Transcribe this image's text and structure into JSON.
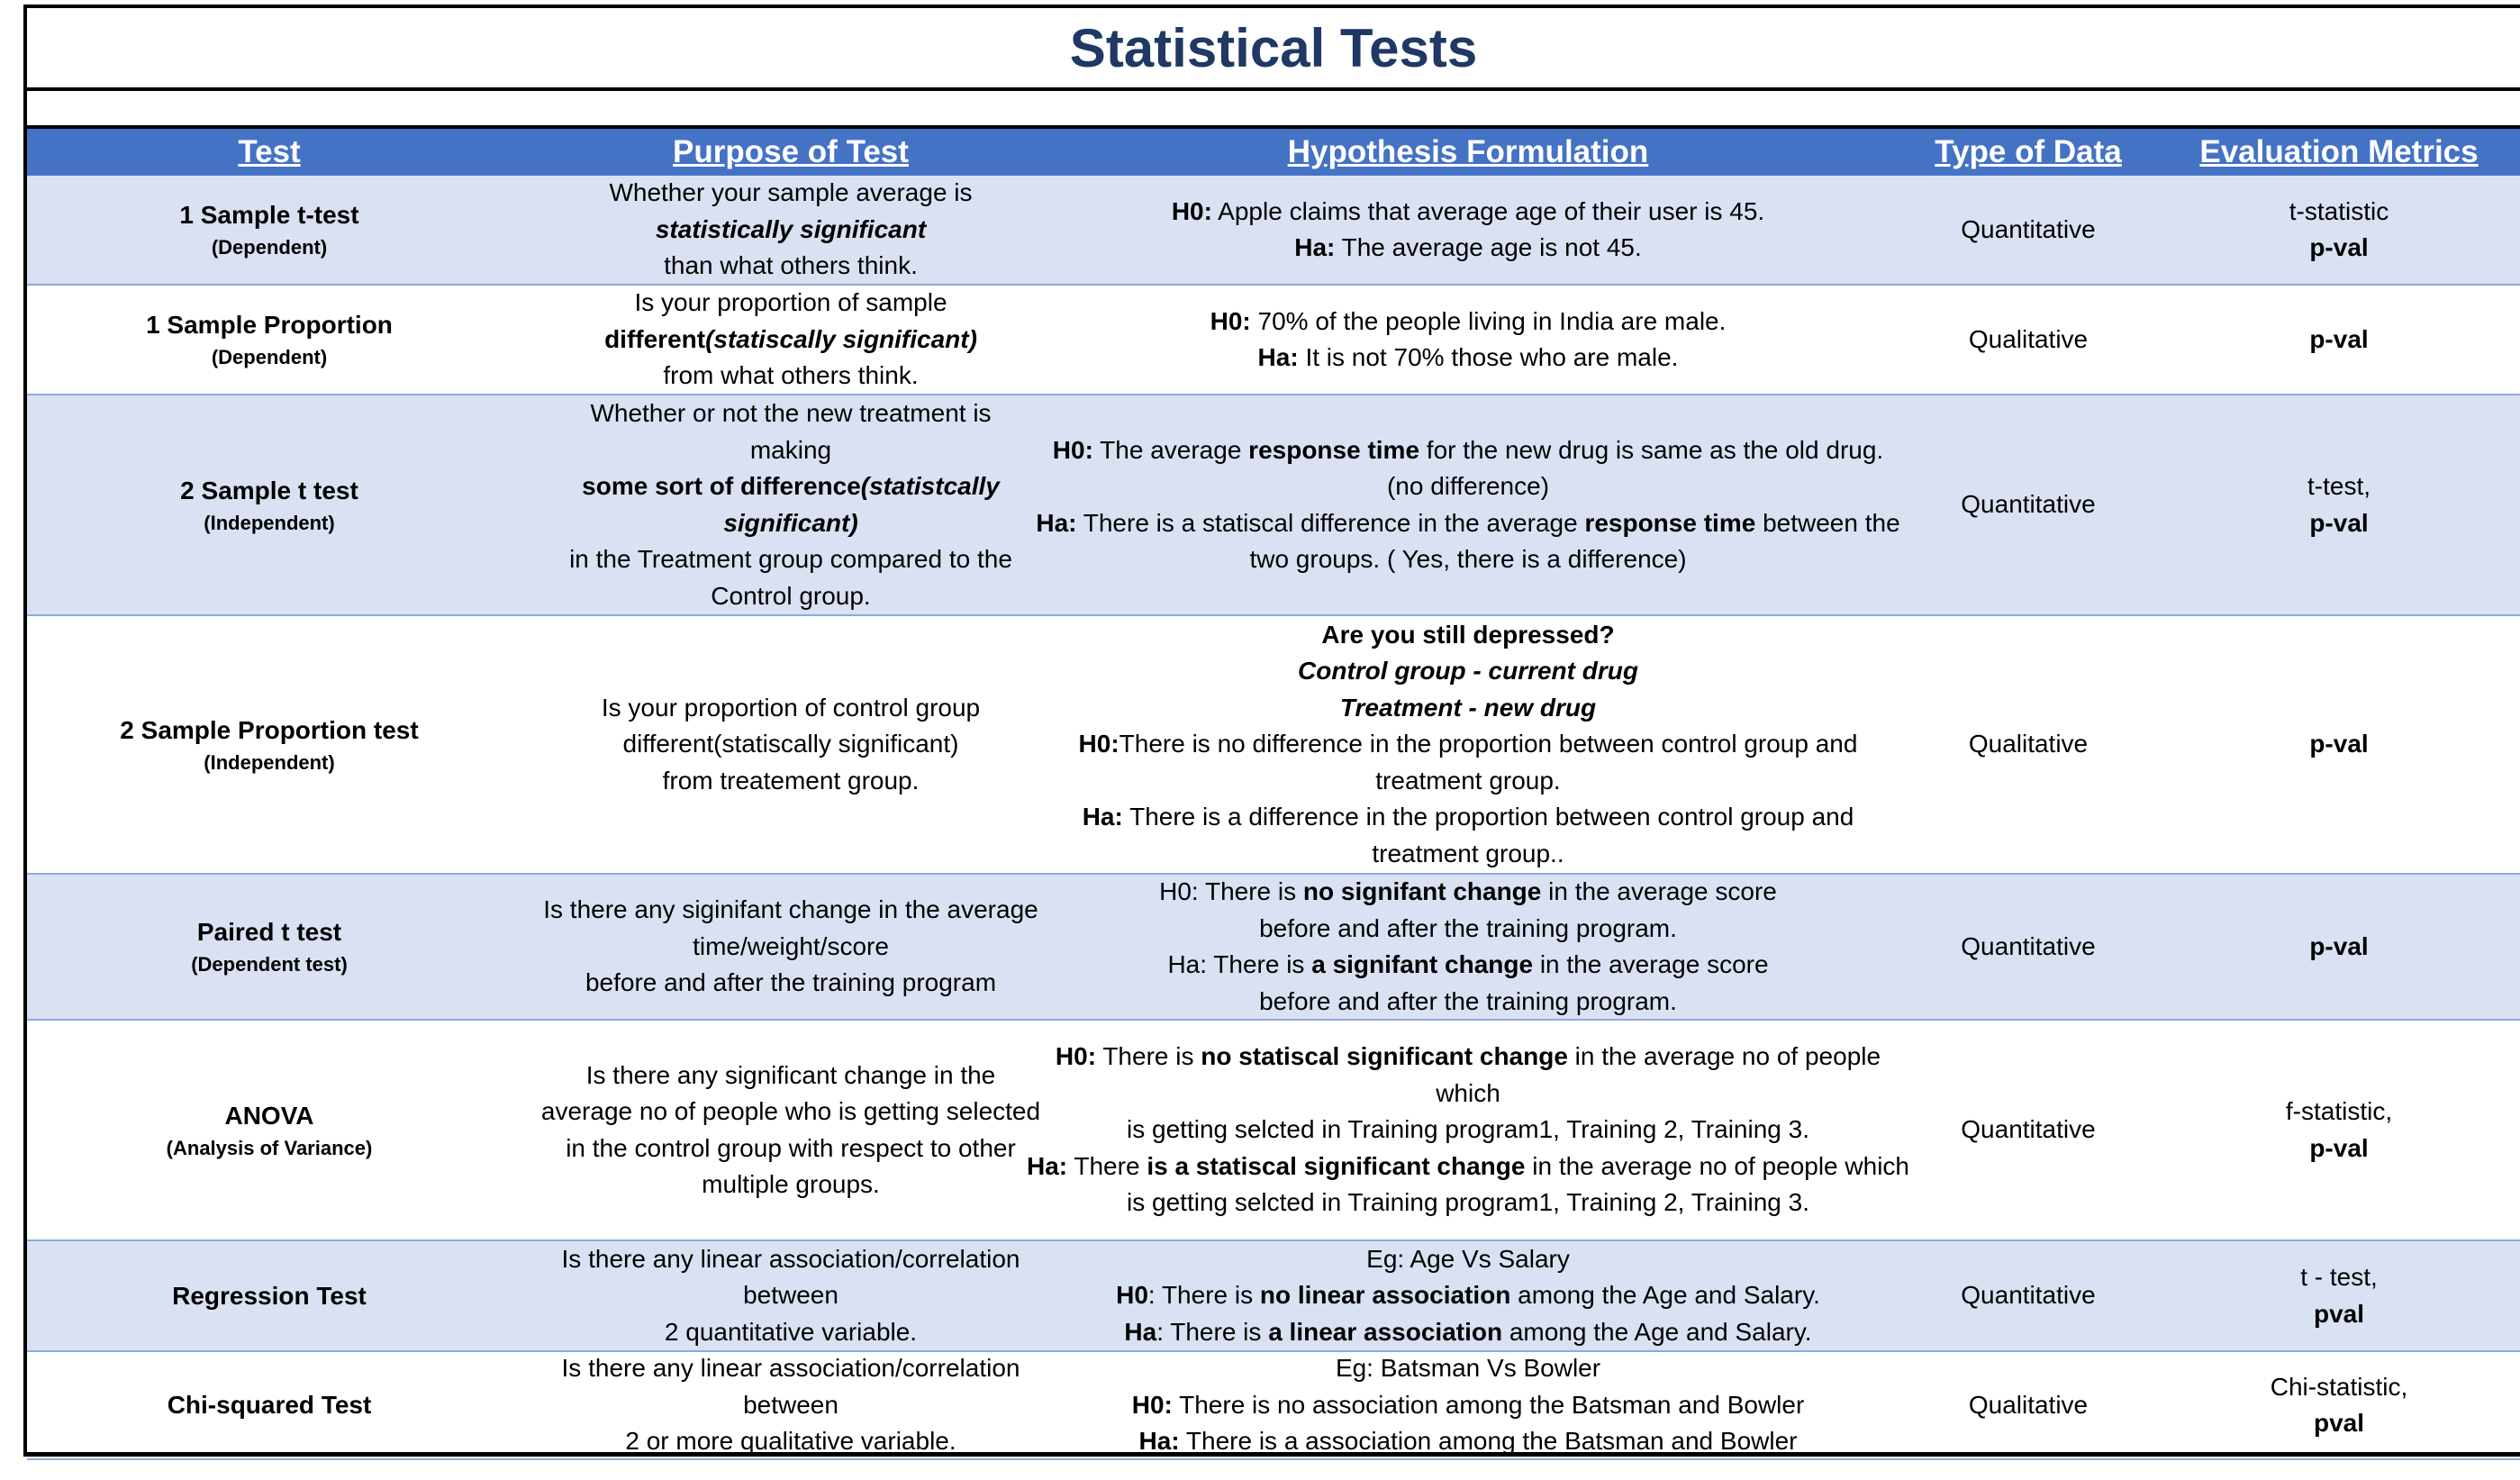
{
  "title": "Statistical Tests",
  "headers": {
    "test": "Test",
    "purpose": "Purpose of Test",
    "hypothesis": "Hypothesis Formulation",
    "type": "Type of Data",
    "metrics": "Evaluation Metrics"
  },
  "rows": [
    {
      "test": "1 Sample t-test",
      "sub": "(Dependent)",
      "purpose": [
        [
          {
            "t": "Whether your sample average is",
            "s": ""
          }
        ],
        [
          {
            "t": "statistically significant",
            "s": "bi"
          }
        ],
        [
          {
            "t": "than what others think.",
            "s": ""
          }
        ]
      ],
      "hypothesis": [
        [
          {
            "t": "H0:",
            "s": "b"
          },
          {
            "t": " Apple claims that average age of their user is 45.",
            "s": ""
          }
        ],
        [
          {
            "t": "Ha:",
            "s": "b"
          },
          {
            "t": "  The average age is not 45.",
            "s": ""
          }
        ]
      ],
      "type": "Quantitative",
      "metrics": [
        [
          {
            "t": "t-statistic",
            "s": ""
          }
        ],
        [
          {
            "t": "p-val",
            "s": "b"
          }
        ]
      ]
    },
    {
      "test": "1 Sample Proportion",
      "sub": "(Dependent)",
      "purpose": [
        [
          {
            "t": "Is your proportion of sample",
            "s": ""
          }
        ],
        [
          {
            "t": "different",
            "s": "b"
          },
          {
            "t": "(statiscally significant)",
            "s": "bi"
          }
        ],
        [
          {
            "t": "from what others think.",
            "s": ""
          }
        ]
      ],
      "hypothesis": [
        [
          {
            "t": "H0:",
            "s": "b"
          },
          {
            "t": " 70% of the people living in India are male.",
            "s": ""
          }
        ],
        [
          {
            "t": "Ha:",
            "s": "b"
          },
          {
            "t": "  It is not 70% those who are male.",
            "s": ""
          }
        ]
      ],
      "type": "Qualitative",
      "metrics": [
        [
          {
            "t": "p-val",
            "s": "b"
          }
        ]
      ]
    },
    {
      "test": "2 Sample t test",
      "sub": "(Independent)",
      "purpose": [
        [
          {
            "t": "Whether or not the new treatment is",
            "s": ""
          }
        ],
        [
          {
            "t": "making",
            "s": ""
          }
        ],
        [
          {
            "t": "some sort of difference",
            "s": "b"
          },
          {
            "t": "(statistcally",
            "s": "bi"
          }
        ],
        [
          {
            "t": "significant)",
            "s": "bi"
          }
        ],
        [
          {
            "t": "in the Treatment group compared to the",
            "s": ""
          }
        ],
        [
          {
            "t": "Control group.",
            "s": ""
          }
        ]
      ],
      "hypothesis": [
        [
          {
            "t": "H0:",
            "s": "b"
          },
          {
            "t": " The average ",
            "s": ""
          },
          {
            "t": "response time",
            "s": "b"
          },
          {
            "t": " for the new drug is same as the old drug.",
            "s": ""
          }
        ],
        [
          {
            "t": "(no difference)",
            "s": ""
          }
        ],
        [
          {
            "t": "Ha:",
            "s": "b"
          },
          {
            "t": " There is a statiscal difference in the average ",
            "s": ""
          },
          {
            "t": "response time",
            "s": "b"
          },
          {
            "t": " between the",
            "s": ""
          }
        ],
        [
          {
            "t": "two groups. ( Yes, there is a difference)",
            "s": ""
          }
        ]
      ],
      "type": "Quantitative",
      "metrics": [
        [
          {
            "t": "t-test,",
            "s": ""
          }
        ],
        [
          {
            "t": "p-val",
            "s": "b"
          }
        ]
      ]
    },
    {
      "test": "2 Sample Proportion test",
      "sub": "(Independent)",
      "purpose": [
        [
          {
            "t": "Is your proportion of control group",
            "s": ""
          }
        ],
        [
          {
            "t": "different(statiscally significant)",
            "s": ""
          }
        ],
        [
          {
            "t": "from treatement group.",
            "s": ""
          }
        ]
      ],
      "hypothesis": [
        [
          {
            "t": "Are you still depressed?",
            "s": "b"
          }
        ],
        [
          {
            "t": "Control group - current drug",
            "s": "bi"
          }
        ],
        [
          {
            "t": "Treatment - new drug",
            "s": "bi"
          }
        ],
        [
          {
            "t": "H0:",
            "s": "b"
          },
          {
            "t": "There is no difference in the proportion between control group and",
            "s": ""
          }
        ],
        [
          {
            "t": "treatment group.",
            "s": ""
          }
        ],
        [
          {
            "t": "Ha:",
            "s": "b"
          },
          {
            "t": " There is a difference in the proportion between control group and",
            "s": ""
          }
        ],
        [
          {
            "t": "treatment group..",
            "s": ""
          }
        ]
      ],
      "type": "Qualitative",
      "metrics": [
        [
          {
            "t": "p-val",
            "s": "b"
          }
        ]
      ]
    },
    {
      "test": "Paired t test",
      "sub": "(Dependent test)",
      "purpose": [
        [
          {
            "t": "Is there any siginifant change in the average",
            "s": ""
          }
        ],
        [
          {
            "t": "time/weight/score",
            "s": ""
          }
        ],
        [
          {
            "t": "before and after the training program",
            "s": ""
          }
        ]
      ],
      "hypothesis": [
        [
          {
            "t": "H0: There is ",
            "s": ""
          },
          {
            "t": "no signifant change",
            "s": "b"
          },
          {
            "t": " in the average score",
            "s": ""
          }
        ],
        [
          {
            "t": "before and after the training program.",
            "s": ""
          }
        ],
        [
          {
            "t": "Ha: There is ",
            "s": ""
          },
          {
            "t": "a signifant change",
            "s": "b"
          },
          {
            "t": " in the average score",
            "s": ""
          }
        ],
        [
          {
            "t": "before and after the training program.",
            "s": ""
          }
        ]
      ],
      "type": "Quantitative",
      "metrics": [
        [
          {
            "t": "p-val",
            "s": "b"
          }
        ]
      ]
    },
    {
      "test": "ANOVA",
      "sub": "(Analysis of Variance)",
      "purpose": [
        [
          {
            "t": "Is there any significant change in the",
            "s": ""
          }
        ],
        [
          {
            "t": "average no of people who is getting selected",
            "s": ""
          }
        ],
        [
          {
            "t": "in the control group with respect to other",
            "s": ""
          }
        ],
        [
          {
            "t": "multiple groups.",
            "s": ""
          }
        ]
      ],
      "hypothesis": [
        [
          {
            "t": "H0:",
            "s": "b"
          },
          {
            "t": " There is ",
            "s": ""
          },
          {
            "t": "no statiscal significant change",
            "s": "b"
          },
          {
            "t": " in the average no of people",
            "s": ""
          }
        ],
        [
          {
            "t": "which",
            "s": ""
          }
        ],
        [
          {
            "t": "is getting selcted in Training program1, Training 2, Training 3.",
            "s": ""
          }
        ],
        [
          {
            "t": "Ha:",
            "s": "b"
          },
          {
            "t": " There ",
            "s": ""
          },
          {
            "t": "is a statiscal significant change",
            "s": "b"
          },
          {
            "t": " in the average no of people which",
            "s": ""
          }
        ],
        [
          {
            "t": "is getting selcted in Training program1, Training 2, Training 3.",
            "s": ""
          }
        ]
      ],
      "type": "Quantitative",
      "metrics": [
        [
          {
            "t": "f-statistic,",
            "s": ""
          }
        ],
        [
          {
            "t": "p-val",
            "s": "b"
          }
        ]
      ]
    },
    {
      "test": "Regression Test",
      "sub": "",
      "purpose": [
        [
          {
            "t": "Is there any linear association/correlation",
            "s": ""
          }
        ],
        [
          {
            "t": "between",
            "s": ""
          }
        ],
        [
          {
            "t": "2 quantitative variable.",
            "s": ""
          }
        ]
      ],
      "hypothesis": [
        [
          {
            "t": "Eg: Age Vs Salary",
            "s": ""
          }
        ],
        [
          {
            "t": "H0",
            "s": "b"
          },
          {
            "t": ": There is ",
            "s": ""
          },
          {
            "t": "no linear association",
            "s": "b"
          },
          {
            "t": " among the Age and Salary.",
            "s": ""
          }
        ],
        [
          {
            "t": "Ha",
            "s": "b"
          },
          {
            "t": ": There is ",
            "s": ""
          },
          {
            "t": "a linear association",
            "s": "b"
          },
          {
            "t": " among the  Age and Salary.",
            "s": ""
          }
        ]
      ],
      "type": "Quantitative",
      "metrics": [
        [
          {
            "t": "t - test,",
            "s": ""
          }
        ],
        [
          {
            "t": "pval",
            "s": "b"
          }
        ]
      ]
    },
    {
      "test": "Chi-squared Test",
      "sub": "",
      "purpose": [
        [
          {
            "t": "Is there any linear association/correlation",
            "s": ""
          }
        ],
        [
          {
            "t": "between",
            "s": ""
          }
        ],
        [
          {
            "t": "2 or more qualitative variable.",
            "s": ""
          }
        ]
      ],
      "hypothesis": [
        [
          {
            "t": "Eg: Batsman Vs Bowler",
            "s": ""
          }
        ],
        [
          {
            "t": "H0:",
            "s": "b"
          },
          {
            "t": " There is no association among the Batsman and Bowler",
            "s": ""
          }
        ],
        [
          {
            "t": "Ha:",
            "s": "b"
          },
          {
            "t": " There is a association among the Batsman and Bowler",
            "s": ""
          }
        ]
      ],
      "type": "Qualitative",
      "metrics": [
        [
          {
            "t": "Chi-statistic,",
            "s": ""
          }
        ],
        [
          {
            "t": "pval",
            "s": "b"
          }
        ]
      ]
    }
  ]
}
